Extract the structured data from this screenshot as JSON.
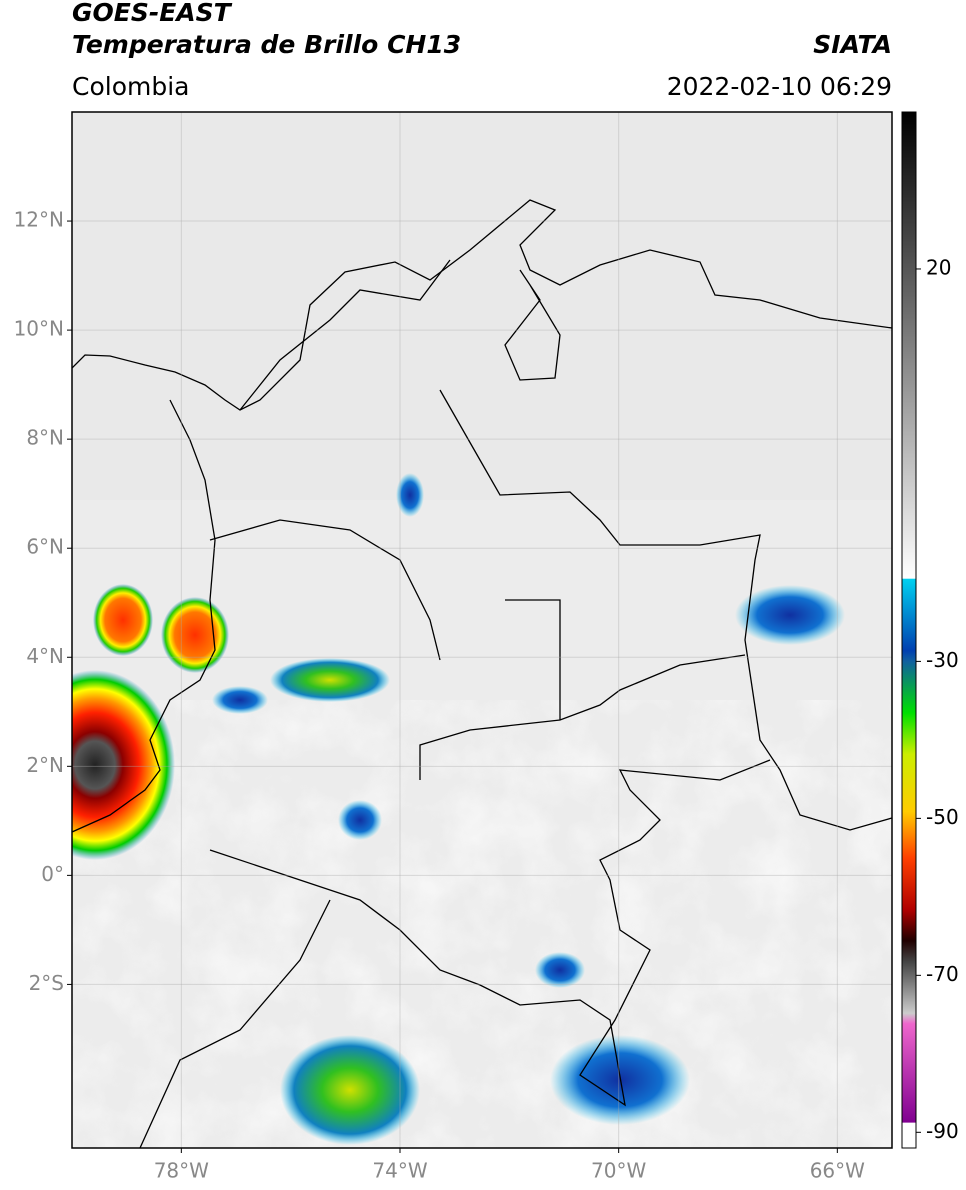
{
  "header": {
    "title": "GOES-EAST",
    "subtitle": "Temperatura de Brillo CH13",
    "source": "SIATA",
    "region": "Colombia",
    "timestamp": "2022-02-10 06:29"
  },
  "map": {
    "xlim": [
      -80,
      -65
    ],
    "ylim": [
      -5,
      14
    ],
    "xticks": [
      {
        "value": -78,
        "label": "78°W"
      },
      {
        "value": -74,
        "label": "74°W"
      },
      {
        "value": -70,
        "label": "70°W"
      },
      {
        "value": -66,
        "label": "66°W"
      }
    ],
    "yticks": [
      {
        "value": 12,
        "label": "12°N"
      },
      {
        "value": 10,
        "label": "10°N"
      },
      {
        "value": 8,
        "label": "8°N"
      },
      {
        "value": 6,
        "label": "6°N"
      },
      {
        "value": 4,
        "label": "4°N"
      },
      {
        "value": 2,
        "label": "2°N"
      },
      {
        "value": 0,
        "label": "0°"
      },
      {
        "value": -2,
        "label": "2°S"
      }
    ],
    "grid": true
  },
  "colorbar": {
    "lim": [
      -92,
      40
    ],
    "ticks": [
      20,
      -30,
      -50,
      -70,
      -90
    ]
  }
}
